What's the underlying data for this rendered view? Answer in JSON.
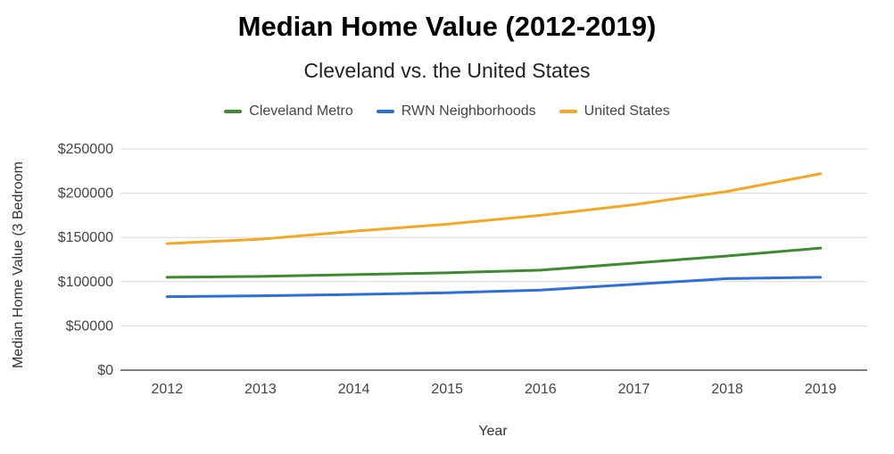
{
  "chart_data": {
    "type": "line",
    "title": "Median Home Value (2012-2019)",
    "subtitle": "Cleveland vs. the United States",
    "xlabel": "Year",
    "ylabel": "Median Home Value (3 Bedroom",
    "ylim": [
      0,
      250000
    ],
    "yticks": [
      0,
      50000,
      100000,
      150000,
      200000,
      250000
    ],
    "ytick_labels": [
      "$0",
      "$50000",
      "$100000",
      "$150000",
      "$200000",
      "$250000"
    ],
    "categories": [
      "2012",
      "2013",
      "2014",
      "2015",
      "2016",
      "2017",
      "2018",
      "2019"
    ],
    "legend_position": "top",
    "grid": true,
    "series": [
      {
        "name": "Cleveland Metro",
        "color": "#3e8a2f",
        "values": [
          105000,
          106000,
          108000,
          110000,
          113000,
          121000,
          129000,
          138000
        ]
      },
      {
        "name": "RWN Neighborhoods",
        "color": "#2d6fd6",
        "values": [
          83000,
          84000,
          85500,
          87500,
          90500,
          97000,
          103500,
          105000
        ]
      },
      {
        "name": "United States",
        "color": "#f5a623",
        "values": [
          143000,
          148000,
          157000,
          165000,
          175000,
          187000,
          202000,
          222000
        ]
      }
    ]
  }
}
